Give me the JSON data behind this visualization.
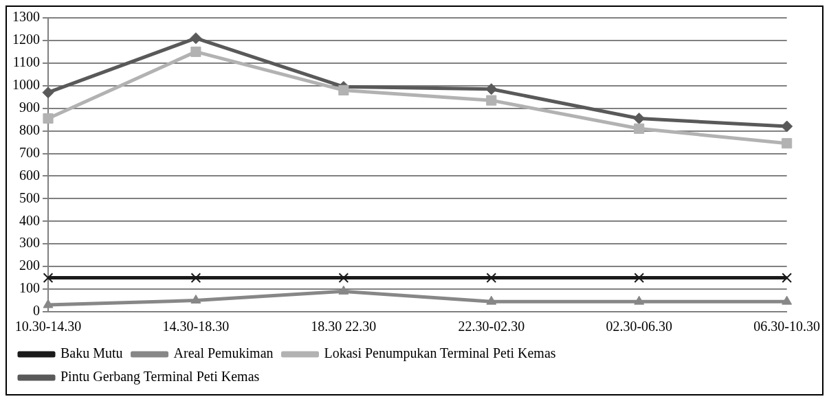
{
  "chart_data": {
    "type": "line",
    "categories": [
      "10.30-14.30",
      "14.30-18.30",
      "18.30 22.30",
      "22.30-02.30",
      "02.30-06.30",
      "06.30-10.30"
    ],
    "series": [
      {
        "name": "Pintu Gerbang Terminal Peti Kemas",
        "color": "#595959",
        "marker": "diamond",
        "values": [
          970,
          1210,
          995,
          985,
          855,
          820
        ]
      },
      {
        "name": "Lokasi Penumpukan Terminal Peti Kemas",
        "color": "#b2b2b2",
        "marker": "square",
        "values": [
          855,
          1150,
          980,
          935,
          810,
          745
        ]
      },
      {
        "name": "Areal Pemukiman",
        "color": "#878787",
        "marker": "triangle",
        "values": [
          30,
          50,
          90,
          45,
          45,
          45
        ]
      },
      {
        "name": "Baku Mutu",
        "color": "#1a1a1a",
        "marker": "cross",
        "values": [
          150,
          150,
          150,
          150,
          150,
          150
        ]
      }
    ],
    "ylim": [
      0,
      1300
    ],
    "yticks": [
      0,
      100,
      200,
      300,
      400,
      500,
      600,
      700,
      800,
      900,
      1000,
      1100,
      1200,
      1300
    ],
    "grid": "y",
    "legend": "bottom",
    "line_style": "solid"
  }
}
